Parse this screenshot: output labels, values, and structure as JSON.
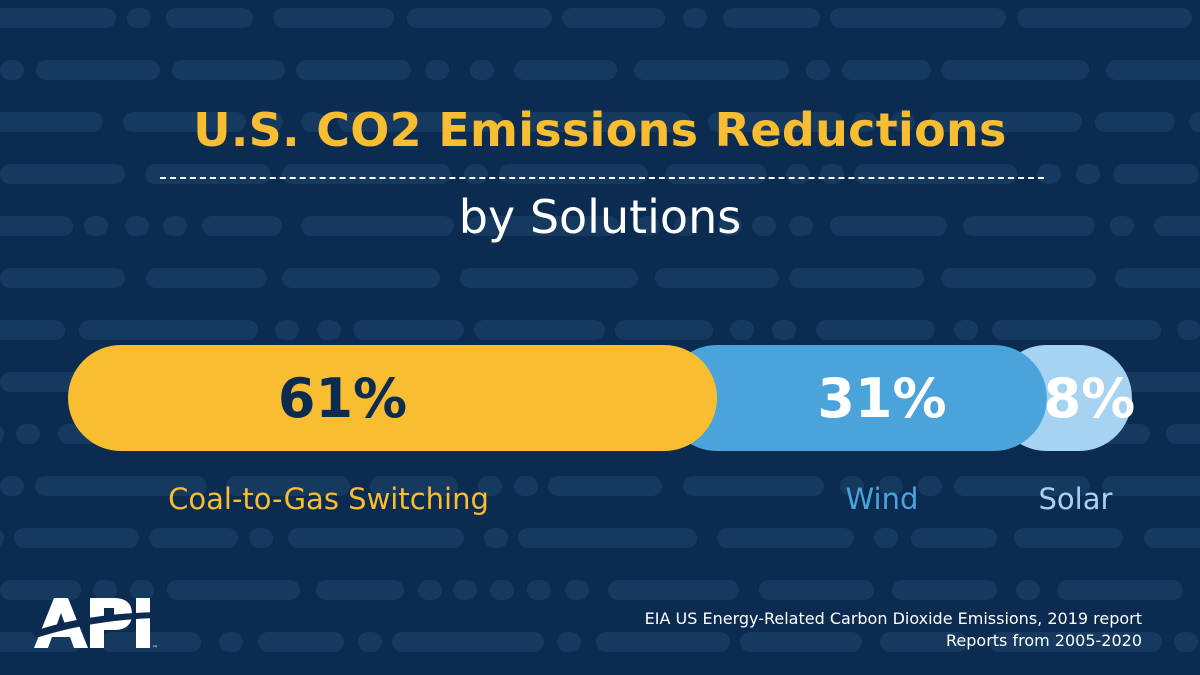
{
  "title": "U.S. CO2 Emissions Reductions",
  "subtitle": "by Solutions",
  "chart_data": {
    "type": "bar",
    "orientation": "horizontal-stacked",
    "categories": [
      "Coal-to-Gas Switching",
      "Wind",
      "Solar"
    ],
    "values": [
      61,
      31,
      8
    ],
    "value_labels": [
      "61%",
      "31%",
      "8%"
    ],
    "colors": [
      "#f8bd30",
      "#4aa3da",
      "#a6d3f2"
    ],
    "label_colors": [
      "#0c2b50",
      "#ffffff",
      "#ffffff"
    ],
    "category_label_colors": [
      "#f8bd30",
      "#4aa3da",
      "#a6d3f2"
    ],
    "unit": "%"
  },
  "brand": {
    "logo_text": "API",
    "logo_icon": "api-logo-icon"
  },
  "source": {
    "line1": "EIA US Energy-Related Carbon Dioxide Emissions, 2019 report",
    "line2": "Reports from 2005-2020"
  },
  "colors": {
    "background": "#0c2b50",
    "pattern": "#15395f",
    "accent": "#f8bd30"
  }
}
